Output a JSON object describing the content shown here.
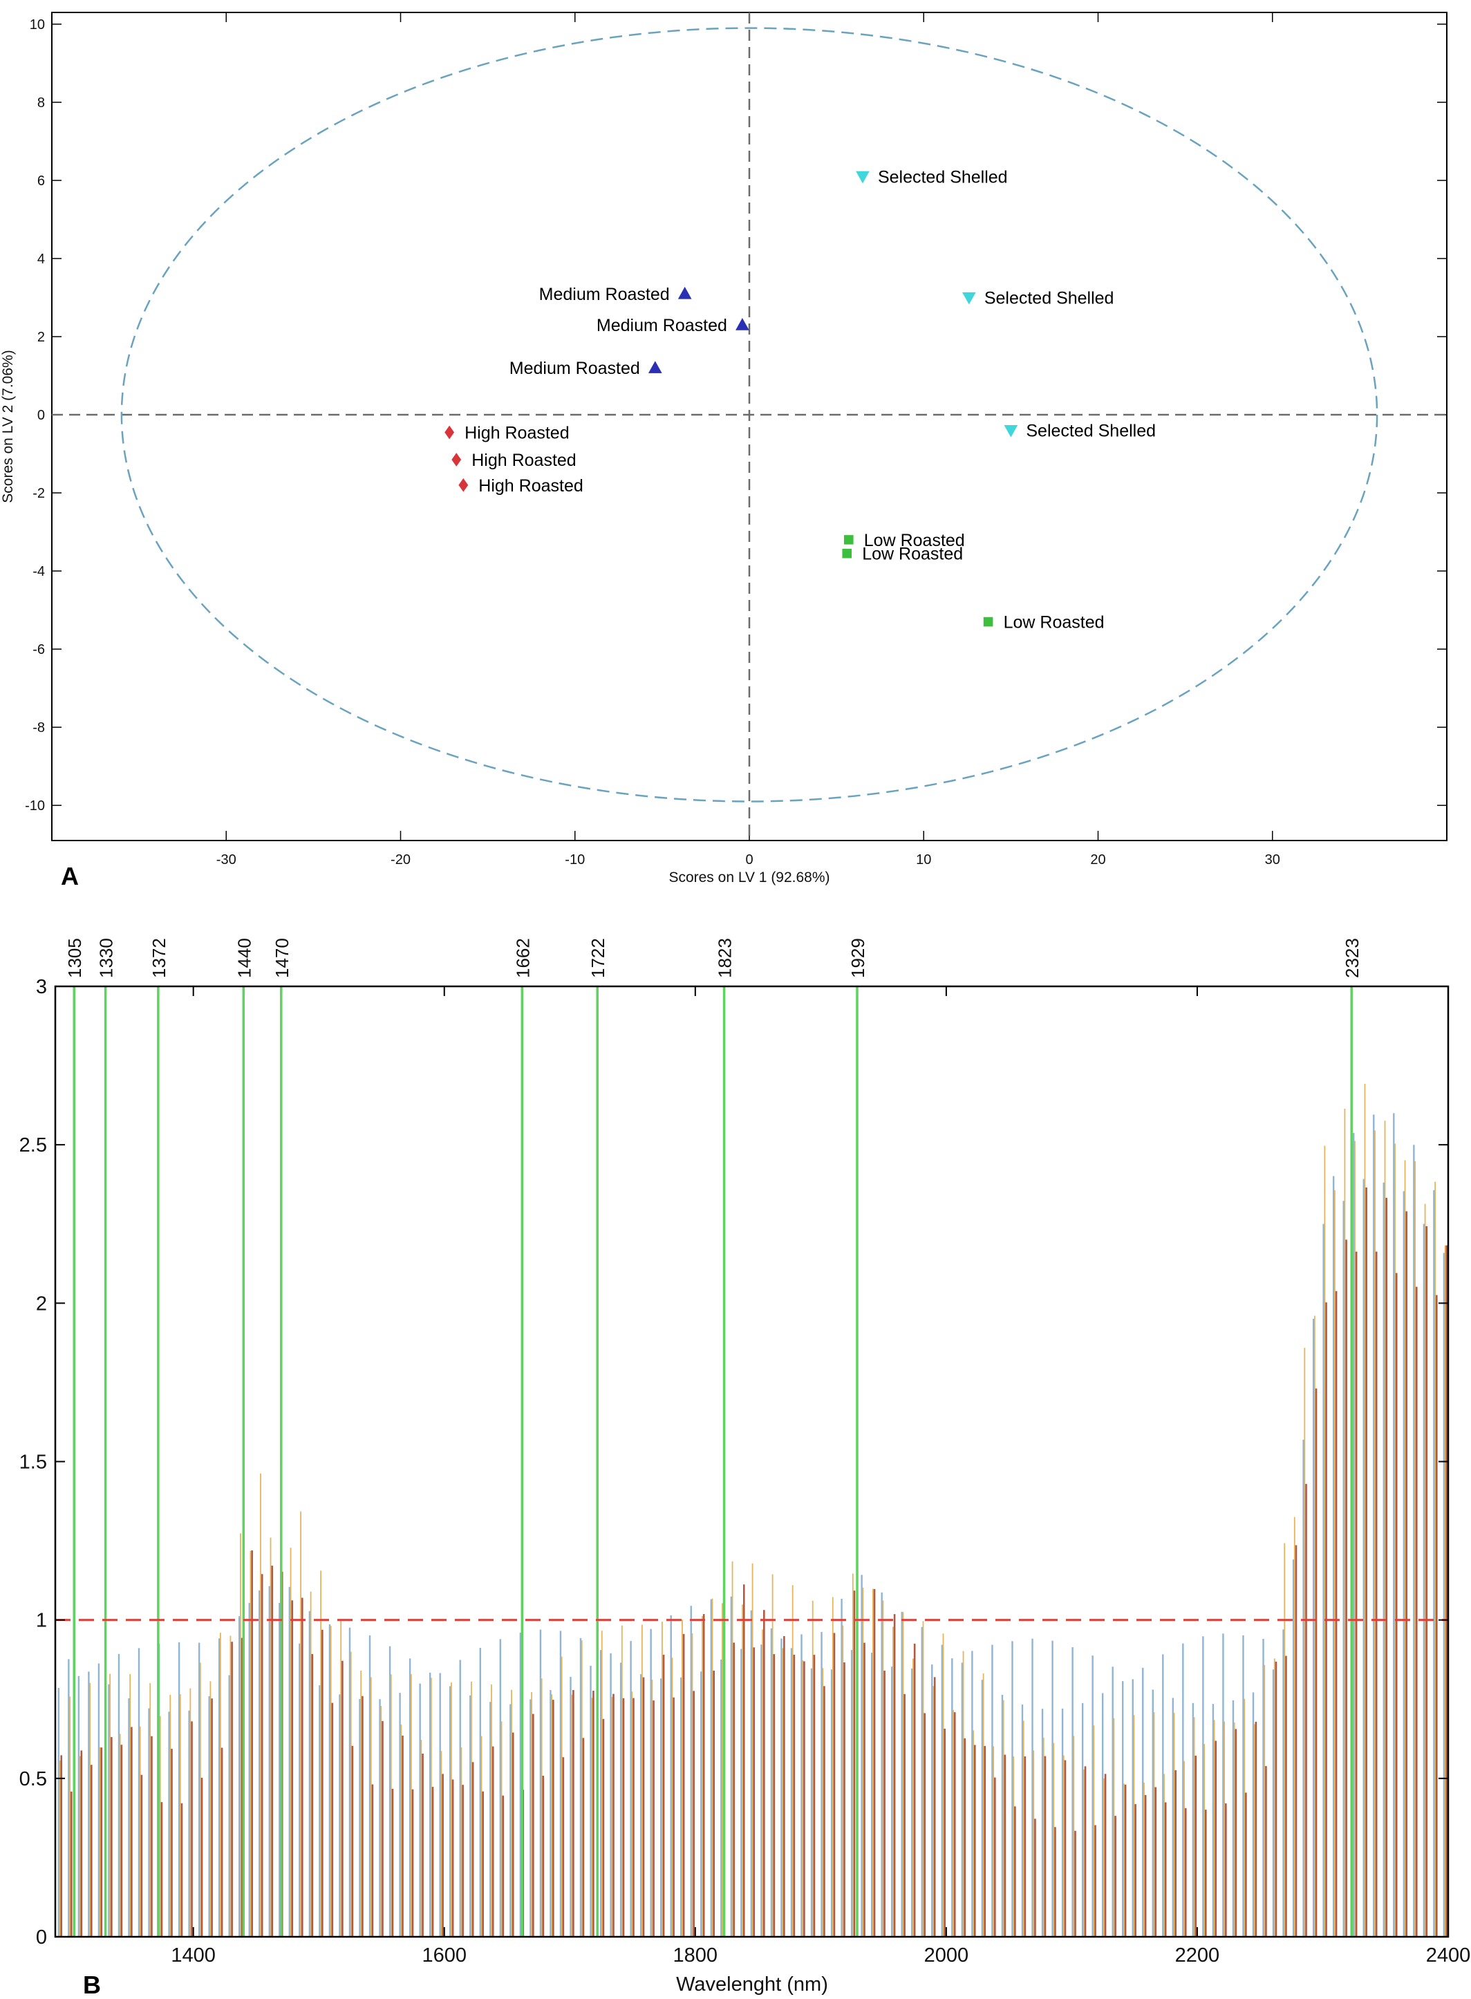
{
  "chart_data": [
    {
      "panel": "A",
      "type": "scatter",
      "xlabel": "Scores on LV 1 (92.68%)",
      "ylabel": "Scores on LV 2 (7.06%)",
      "xlim": [
        -40,
        40
      ],
      "ylim": [
        -10.9,
        10.3
      ],
      "xticks": [
        -30,
        -20,
        -10,
        0,
        10,
        20,
        30
      ],
      "yticks": [
        -10,
        -8,
        -6,
        -4,
        -2,
        0,
        2,
        4,
        6,
        8,
        10
      ],
      "ellipse": {
        "center": [
          0,
          0
        ],
        "rx": 36,
        "ry": 9.9,
        "style": "dashed",
        "color": "#6aa3bf"
      },
      "reference_lines": [
        {
          "axis": "x",
          "value": 0
        },
        {
          "axis": "y",
          "value": 0
        }
      ],
      "grid": false,
      "points": [
        {
          "label": "Selected Shelled",
          "x": 6.5,
          "y": 6.1,
          "marker": "triangle-down",
          "color": "#3fd6dc"
        },
        {
          "label": "Selected Shelled",
          "x": 12.6,
          "y": 3.0,
          "marker": "triangle-down",
          "color": "#3fd6dc"
        },
        {
          "label": "Selected Shelled",
          "x": 15.0,
          "y": -0.4,
          "marker": "triangle-down",
          "color": "#3fd6dc"
        },
        {
          "label": "Medium Roasted",
          "x": -3.7,
          "y": 3.1,
          "marker": "triangle-up",
          "color": "#2b2fb3"
        },
        {
          "label": "Medium Roasted",
          "x": -0.4,
          "y": 2.3,
          "marker": "triangle-up",
          "color": "#2b2fb3"
        },
        {
          "label": "Medium Roasted",
          "x": -5.4,
          "y": 1.2,
          "marker": "triangle-up",
          "color": "#2b2fb3"
        },
        {
          "label": "High Roasted",
          "x": -17.2,
          "y": -0.45,
          "marker": "diamond",
          "color": "#d9343a"
        },
        {
          "label": "High Roasted",
          "x": -16.8,
          "y": -1.15,
          "marker": "diamond",
          "color": "#d9343a"
        },
        {
          "label": "High Roasted",
          "x": -16.4,
          "y": -1.8,
          "marker": "diamond",
          "color": "#d9343a"
        },
        {
          "label": "Low Roasted",
          "x": 5.7,
          "y": -3.2,
          "marker": "square",
          "color": "#3cbf3c"
        },
        {
          "label": "Low Roasted",
          "x": 5.6,
          "y": -3.55,
          "marker": "square",
          "color": "#3cbf3c"
        },
        {
          "label": "Low Roasted",
          "x": 13.7,
          "y": -5.3,
          "marker": "square",
          "color": "#3cbf3c"
        }
      ]
    },
    {
      "panel": "B",
      "type": "bar",
      "xlabel": "Wavelenght (nm)",
      "ylabel": "",
      "xlim": [
        1290,
        2400
      ],
      "ylim": [
        0,
        3
      ],
      "xticks": [
        1400,
        1600,
        1800,
        2000,
        2200,
        2400
      ],
      "yticks": [
        0,
        0.5,
        1,
        1.5,
        2,
        2.5,
        3
      ],
      "threshold": {
        "value": 1,
        "style": "dashed",
        "color": "#e0413a"
      },
      "marked_wavelengths": [
        1305,
        1330,
        1372,
        1440,
        1470,
        1662,
        1722,
        1823,
        1929,
        2323
      ],
      "marker_color": "#5fd35f",
      "series": [
        {
          "color": "#8fb4d4",
          "profile": [
            [
              1290,
              0.95
            ],
            [
              1330,
              0.95
            ],
            [
              1360,
              0.93
            ],
            [
              1400,
              0.93
            ],
            [
              1430,
              1.0
            ],
            [
              1445,
              1.2
            ],
            [
              1470,
              1.2
            ],
            [
              1500,
              1.0
            ],
            [
              1550,
              0.95
            ],
            [
              1600,
              0.93
            ],
            [
              1650,
              0.95
            ],
            [
              1700,
              1.0
            ],
            [
              1760,
              1.0
            ],
            [
              1800,
              1.05
            ],
            [
              1830,
              1.1
            ],
            [
              1870,
              1.05
            ],
            [
              1900,
              1.0
            ],
            [
              1930,
              1.15
            ],
            [
              1960,
              1.05
            ],
            [
              2000,
              1.0
            ],
            [
              2050,
              0.95
            ],
            [
              2100,
              0.93
            ],
            [
              2150,
              0.93
            ],
            [
              2200,
              0.95
            ],
            [
              2250,
              0.97
            ],
            [
              2270,
              1.05
            ],
            [
              2300,
              2.4
            ],
            [
              2330,
              2.6
            ],
            [
              2360,
              2.6
            ],
            [
              2400,
              2.3
            ]
          ]
        },
        {
          "color": "#e8b45a",
          "profile": [
            [
              1290,
              0.75
            ],
            [
              1340,
              0.85
            ],
            [
              1380,
              0.85
            ],
            [
              1420,
              1.0
            ],
            [
              1445,
              1.45
            ],
            [
              1470,
              1.5
            ],
            [
              1500,
              1.2
            ],
            [
              1540,
              0.9
            ],
            [
              1600,
              0.8
            ],
            [
              1650,
              0.85
            ],
            [
              1700,
              0.95
            ],
            [
              1760,
              1.0
            ],
            [
              1800,
              1.1
            ],
            [
              1830,
              1.25
            ],
            [
              1860,
              1.15
            ],
            [
              1900,
              1.05
            ],
            [
              1930,
              1.25
            ],
            [
              1960,
              1.1
            ],
            [
              2000,
              0.95
            ],
            [
              2050,
              0.75
            ],
            [
              2100,
              0.7
            ],
            [
              2150,
              0.7
            ],
            [
              2200,
              0.75
            ],
            [
              2250,
              0.85
            ],
            [
              2270,
              1.3
            ],
            [
              2300,
              2.5
            ],
            [
              2330,
              2.75
            ],
            [
              2360,
              2.6
            ],
            [
              2400,
              2.35
            ]
          ]
        },
        {
          "color": "#b05a43",
          "profile": [
            [
              1290,
              0.6
            ],
            [
              1340,
              0.75
            ],
            [
              1380,
              0.6
            ],
            [
              1420,
              0.8
            ],
            [
              1445,
              1.3
            ],
            [
              1470,
              1.25
            ],
            [
              1500,
              1.0
            ],
            [
              1540,
              0.7
            ],
            [
              1600,
              0.6
            ],
            [
              1650,
              0.65
            ],
            [
              1700,
              0.8
            ],
            [
              1760,
              0.9
            ],
            [
              1800,
              1.0
            ],
            [
              1830,
              1.15
            ],
            [
              1860,
              1.05
            ],
            [
              1900,
              0.95
            ],
            [
              1930,
              1.15
            ],
            [
              1960,
              1.0
            ],
            [
              2000,
              0.8
            ],
            [
              2050,
              0.6
            ],
            [
              2100,
              0.55
            ],
            [
              2150,
              0.55
            ],
            [
              2200,
              0.6
            ],
            [
              2250,
              0.7
            ],
            [
              2270,
              1.1
            ],
            [
              2300,
              2.1
            ],
            [
              2330,
              2.4
            ],
            [
              2360,
              2.3
            ],
            [
              2400,
              2.2
            ]
          ]
        }
      ]
    }
  ],
  "panels": {
    "a_letter": "A",
    "b_letter": "B"
  }
}
